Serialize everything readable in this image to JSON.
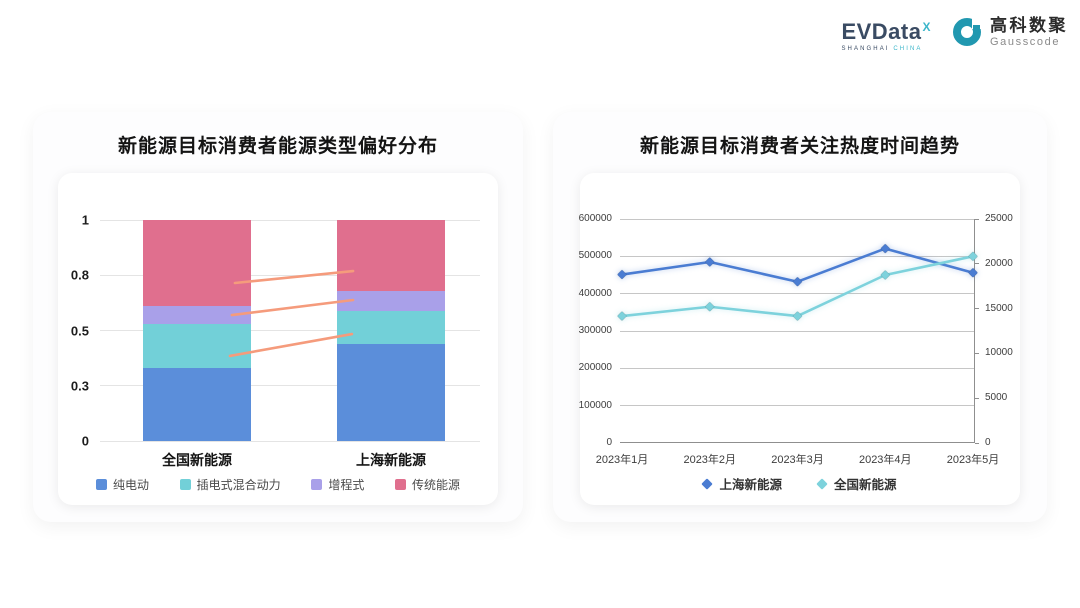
{
  "brand": {
    "evdata": {
      "name": "EVData",
      "sup": "X",
      "sub_dark": "SHANGHAI",
      "sub_teal": "CHINA"
    },
    "gausscode": {
      "cn": "高科数聚",
      "en": "Gausscode",
      "icon_color": "#2198b0"
    }
  },
  "chart_data": [
    {
      "type": "bar",
      "stacked": true,
      "title": "新能源目标消费者能源类型偏好分布",
      "categories": [
        "全国新能源",
        "上海新能源"
      ],
      "series": [
        {
          "name": "纯电动",
          "color": "#5b8eda",
          "values": [
            0.33,
            0.44
          ]
        },
        {
          "name": "插电式混合动力",
          "color": "#72d0d8",
          "values": [
            0.2,
            0.15
          ]
        },
        {
          "name": "增程式",
          "color": "#a9a0e9",
          "values": [
            0.08,
            0.09
          ]
        },
        {
          "name": "传统能源",
          "color": "#e06f8e",
          "values": [
            0.39,
            0.32
          ]
        }
      ],
      "ylim": [
        0,
        1
      ],
      "yticks": [
        {
          "label": "0",
          "pos": 0
        },
        {
          "label": "0.3",
          "pos": 0.25
        },
        {
          "label": "0.5",
          "pos": 0.5
        },
        {
          "label": "0.8",
          "pos": 0.75
        },
        {
          "label": "1",
          "pos": 1
        }
      ],
      "grid": true,
      "legend_position": "bottom",
      "connectors": {
        "color": "#f59b7c",
        "lines": [
          [
            0.355,
            0.715,
            0.666,
            0.769
          ],
          [
            0.347,
            0.57,
            0.666,
            0.638
          ],
          [
            0.342,
            0.385,
            0.663,
            0.484
          ]
        ]
      }
    },
    {
      "type": "line",
      "title": "新能源目标消费者关注热度时间趋势",
      "x": [
        "2023年1月",
        "2023年2月",
        "2023年3月",
        "2023年4月",
        "2023年5月"
      ],
      "series": [
        {
          "name": "上海新能源",
          "color": "#4a7cd2",
          "axis": "right",
          "values": [
            18800,
            20200,
            18000,
            21700,
            19000
          ]
        },
        {
          "name": "全国新能源",
          "color": "#7dd2dc",
          "axis": "left",
          "values": [
            340000,
            365000,
            340000,
            450000,
            500000
          ]
        }
      ],
      "left_axis": {
        "max": 600000,
        "ticks": [
          "600000",
          "500000",
          "400000",
          "300000",
          "200000",
          "100000",
          "0"
        ]
      },
      "right_axis": {
        "max": 25000,
        "ticks": [
          "25000",
          "20000",
          "15000",
          "10000",
          "5000",
          "0"
        ]
      },
      "grid": true,
      "legend_position": "bottom"
    }
  ]
}
